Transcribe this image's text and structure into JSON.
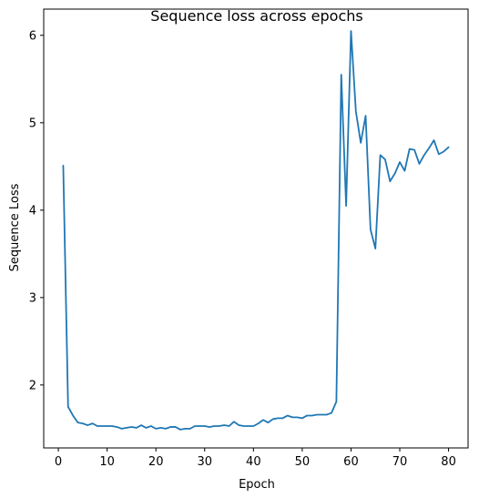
{
  "chart_data": {
    "type": "line",
    "title": "Sequence loss across epochs",
    "xlabel": "Epoch",
    "ylabel": "Sequence Loss",
    "xlim": [
      -3,
      84
    ],
    "ylim": [
      1.28,
      6.3
    ],
    "xticks": [
      0,
      10,
      20,
      30,
      40,
      50,
      60,
      70,
      80
    ],
    "yticks": [
      2,
      3,
      4,
      5,
      6
    ],
    "grid": false,
    "legend": "none",
    "line_color": "#1f77b4",
    "series": [
      {
        "x": [
          1,
          2,
          3,
          4,
          5,
          6,
          7,
          8,
          9,
          10,
          11,
          12,
          13,
          14,
          15,
          16,
          17,
          18,
          19,
          20,
          21,
          22,
          23,
          24,
          25,
          26,
          27,
          28,
          29,
          30,
          31,
          32,
          33,
          34,
          35,
          36,
          37,
          38,
          39,
          40,
          41,
          42,
          43,
          44,
          45,
          46,
          47,
          48,
          49,
          50,
          51,
          52,
          53,
          54,
          55,
          56,
          57,
          58,
          59,
          60,
          61,
          62,
          63,
          64,
          65,
          66,
          67,
          68,
          69,
          70,
          71,
          72,
          73,
          74,
          75,
          76,
          77,
          78,
          79,
          80
        ],
        "values": [
          4.51,
          1.75,
          1.65,
          1.57,
          1.56,
          1.54,
          1.56,
          1.53,
          1.53,
          1.53,
          1.53,
          1.52,
          1.5,
          1.51,
          1.52,
          1.51,
          1.54,
          1.51,
          1.53,
          1.5,
          1.51,
          1.5,
          1.52,
          1.52,
          1.49,
          1.5,
          1.5,
          1.53,
          1.53,
          1.53,
          1.52,
          1.53,
          1.53,
          1.54,
          1.53,
          1.58,
          1.54,
          1.53,
          1.53,
          1.53,
          1.56,
          1.6,
          1.57,
          1.61,
          1.62,
          1.62,
          1.65,
          1.63,
          1.63,
          1.62,
          1.65,
          1.65,
          1.66,
          1.66,
          1.66,
          1.68,
          1.81,
          5.55,
          4.05,
          6.05,
          5.13,
          4.77,
          5.08,
          3.78,
          3.56,
          4.63,
          4.58,
          4.33,
          4.42,
          4.55,
          4.45,
          4.7,
          4.69,
          4.53,
          4.63,
          4.71,
          4.8,
          4.64,
          4.67,
          4.72
        ]
      }
    ]
  }
}
